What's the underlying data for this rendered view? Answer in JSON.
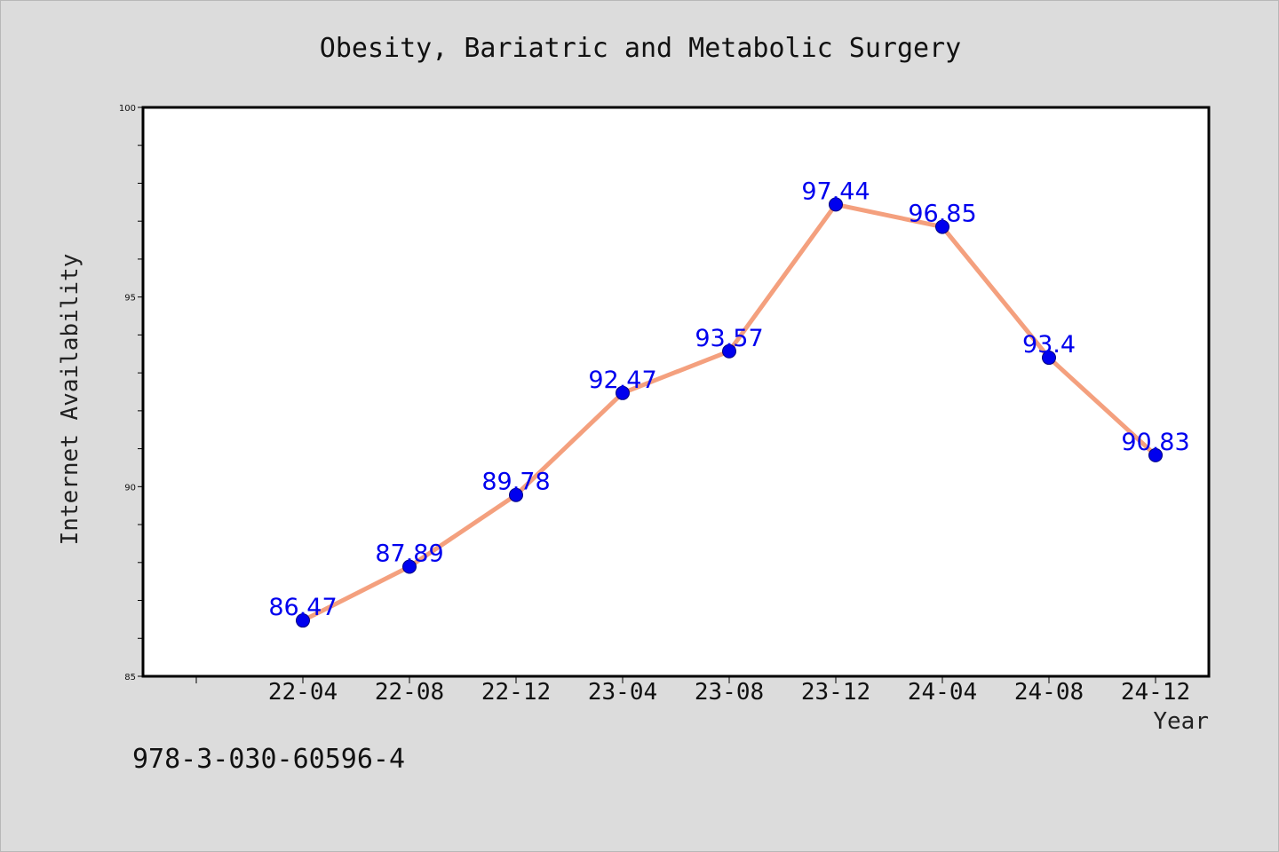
{
  "chart_data": {
    "type": "line",
    "title": "Obesity, Bariatric and Metabolic Surgery",
    "xlabel": "Year",
    "ylabel": "Internet Availability",
    "categories": [
      "22-04",
      "22-08",
      "22-12",
      "23-04",
      "23-08",
      "23-12",
      "24-04",
      "24-08",
      "24-12"
    ],
    "series": [
      {
        "values": [
          86.47,
          87.89,
          89.78,
          92.47,
          93.57,
          97.44,
          96.85,
          93.4,
          90.83
        ]
      }
    ],
    "data_labels": [
      "86.47",
      "87.89",
      "89.78",
      "92.47",
      "93.57",
      "97.44",
      "96.85",
      "93.4",
      "90.83"
    ],
    "ylim": [
      85,
      100
    ],
    "y_ticks": [
      85,
      90,
      95,
      100
    ],
    "y_tick_labels": [
      "85",
      "90",
      "95",
      "100"
    ],
    "grid": false,
    "legend": "none",
    "colors": {
      "line": "#f4a07e",
      "marker": "#0000ee",
      "marker_edge": "#000080",
      "label": "#0000ee",
      "background": "#dcdcdc",
      "plot_area": "#ffffff"
    }
  },
  "footer": {
    "isbn": "978-3-030-60596-4"
  }
}
